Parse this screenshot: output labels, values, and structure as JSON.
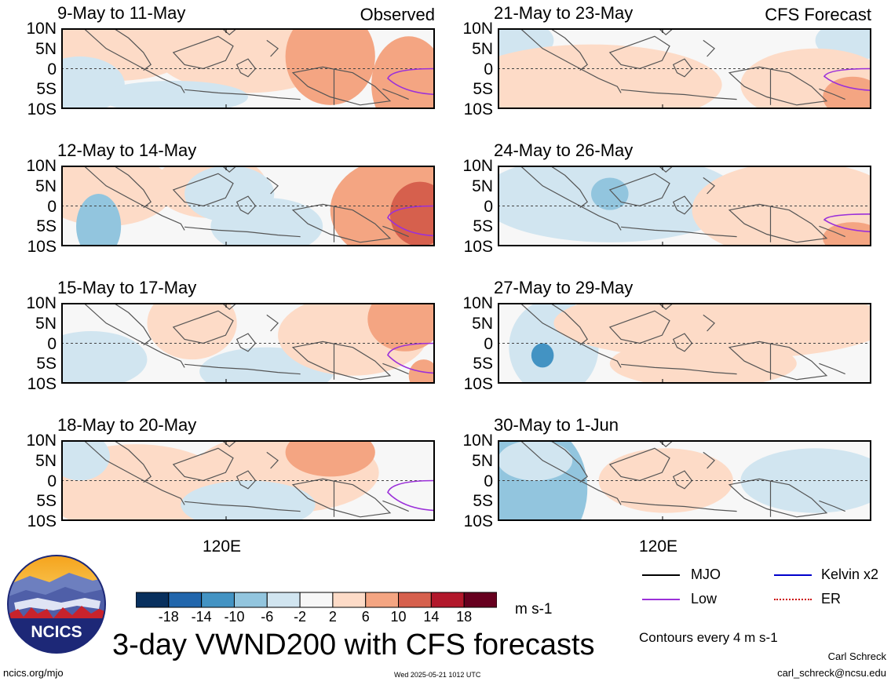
{
  "labels": {
    "observed": "Observed",
    "forecast": "CFS Forecast",
    "lat_ticks": [
      "10N",
      "5N",
      "0",
      "5S",
      "10S"
    ],
    "lon_tick": "120E"
  },
  "title": "3-day VWND200 with CFS forecasts",
  "units": "m s-1",
  "contour_note": "Contours every 4 m s-1",
  "footer": {
    "site": "ncics.org/mjo",
    "timestamp": "Wed 2025-05-21 1012 UTC",
    "author": "Carl Schreck",
    "email": "carl_schreck@ncsu.edu"
  },
  "logo": {
    "text": "NCICS"
  },
  "legend": [
    {
      "label": "MJO",
      "color": "#000000",
      "style": "solid"
    },
    {
      "label": "Kelvin x2",
      "color": "#0000cc",
      "style": "solid"
    },
    {
      "label": "Low",
      "color": "#9b30d9",
      "style": "solid"
    },
    {
      "label": "ER",
      "color": "#cc0000",
      "style": "dotted"
    }
  ],
  "colorbar": {
    "tick_labels": [
      "-18",
      "-14",
      "-10",
      "-6",
      "-2",
      "2",
      "6",
      "10",
      "14",
      "18"
    ],
    "colors": [
      "#08305e",
      "#2166ac",
      "#4393c3",
      "#92c5de",
      "#d1e5f0",
      "#f7f7f7",
      "#fddbc7",
      "#f4a582",
      "#d6604d",
      "#b2182b",
      "#67001f"
    ]
  },
  "chart_data": [
    {
      "type": "heatmap",
      "title": "9-May to 11-May",
      "tag": "Observed",
      "group": "observed",
      "ylim": [
        "10S",
        "10N"
      ],
      "xtick": "120E",
      "blobs": [
        {
          "x": 0.15,
          "y": 0.25,
          "rx": 0.2,
          "ry": 0.4,
          "v": 3
        },
        {
          "x": 0.5,
          "y": 0.3,
          "rx": 0.25,
          "ry": 0.5,
          "v": 3
        },
        {
          "x": 0.72,
          "y": 0.35,
          "rx": 0.12,
          "ry": 0.6,
          "v": 8
        },
        {
          "x": 0.93,
          "y": 0.7,
          "rx": 0.1,
          "ry": 0.6,
          "v": 9
        },
        {
          "x": 0.05,
          "y": 0.7,
          "rx": 0.12,
          "ry": 0.35,
          "v": -3
        },
        {
          "x": 0.3,
          "y": 0.85,
          "rx": 0.2,
          "ry": 0.2,
          "v": -3
        }
      ],
      "overlays": [
        {
          "kind": "Low",
          "shape": "arc-right",
          "y0": 0.5,
          "y1": 0.8
        }
      ]
    },
    {
      "type": "heatmap",
      "title": "12-May to 14-May",
      "tag": "",
      "group": "observed",
      "ylim": [
        "10S",
        "10N"
      ],
      "xtick": "120E",
      "blobs": [
        {
          "x": 0.12,
          "y": 0.3,
          "rx": 0.18,
          "ry": 0.45,
          "v": 3
        },
        {
          "x": 0.4,
          "y": 0.25,
          "rx": 0.15,
          "ry": 0.4,
          "v": 3
        },
        {
          "x": 0.1,
          "y": 0.75,
          "rx": 0.06,
          "ry": 0.4,
          "v": -6
        },
        {
          "x": 0.55,
          "y": 0.75,
          "rx": 0.15,
          "ry": 0.35,
          "v": -5
        },
        {
          "x": 0.45,
          "y": 0.35,
          "rx": 0.12,
          "ry": 0.35,
          "v": -3
        },
        {
          "x": 0.9,
          "y": 0.55,
          "rx": 0.18,
          "ry": 0.65,
          "v": 8
        },
        {
          "x": 0.96,
          "y": 0.6,
          "rx": 0.08,
          "ry": 0.4,
          "v": 12
        }
      ],
      "overlays": [
        {
          "kind": "Low",
          "shape": "arc-right",
          "y0": 0.5,
          "y1": 0.85
        }
      ]
    },
    {
      "type": "heatmap",
      "title": "15-May to 17-May",
      "tag": "",
      "group": "observed",
      "ylim": [
        "10S",
        "10N"
      ],
      "xtick": "120E",
      "blobs": [
        {
          "x": 0.08,
          "y": 0.7,
          "rx": 0.15,
          "ry": 0.35,
          "v": -3
        },
        {
          "x": 0.35,
          "y": 0.25,
          "rx": 0.12,
          "ry": 0.45,
          "v": 3
        },
        {
          "x": 0.55,
          "y": 0.85,
          "rx": 0.18,
          "ry": 0.3,
          "v": -5
        },
        {
          "x": 0.78,
          "y": 0.4,
          "rx": 0.2,
          "ry": 0.5,
          "v": 3
        },
        {
          "x": 0.92,
          "y": 0.2,
          "rx": 0.1,
          "ry": 0.4,
          "v": 8
        },
        {
          "x": 0.97,
          "y": 0.9,
          "rx": 0.04,
          "ry": 0.2,
          "v": 8
        }
      ],
      "overlays": [
        {
          "kind": "Low",
          "shape": "arc-right",
          "y0": 0.5,
          "y1": 0.85
        }
      ]
    },
    {
      "type": "heatmap",
      "title": "18-May to 20-May",
      "tag": "",
      "group": "observed",
      "ylim": [
        "10S",
        "10N"
      ],
      "xtick": "120E",
      "blobs": [
        {
          "x": 0.2,
          "y": 0.6,
          "rx": 0.25,
          "ry": 0.55,
          "v": 3
        },
        {
          "x": 0.6,
          "y": 0.4,
          "rx": 0.25,
          "ry": 0.5,
          "v": 3
        },
        {
          "x": 0.72,
          "y": 0.15,
          "rx": 0.12,
          "ry": 0.3,
          "v": 8
        },
        {
          "x": 0.5,
          "y": 0.8,
          "rx": 0.18,
          "ry": 0.3,
          "v": -5
        },
        {
          "x": 0.05,
          "y": 0.2,
          "rx": 0.08,
          "ry": 0.3,
          "v": -3
        }
      ],
      "overlays": [
        {
          "kind": "Low",
          "shape": "arc-right",
          "y0": 0.5,
          "y1": 0.85
        }
      ]
    },
    {
      "type": "heatmap",
      "title": "21-May to 23-May",
      "tag": "CFS Forecast",
      "group": "forecast",
      "ylim": [
        "10S",
        "10N"
      ],
      "xtick": "120E",
      "blobs": [
        {
          "x": 0.05,
          "y": 0.15,
          "rx": 0.1,
          "ry": 0.25,
          "v": -3
        },
        {
          "x": 0.95,
          "y": 0.15,
          "rx": 0.1,
          "ry": 0.25,
          "v": -4
        },
        {
          "x": 0.25,
          "y": 0.7,
          "rx": 0.35,
          "ry": 0.5,
          "v": 3
        },
        {
          "x": 0.85,
          "y": 0.7,
          "rx": 0.2,
          "ry": 0.45,
          "v": 3
        },
        {
          "x": 0.95,
          "y": 0.85,
          "rx": 0.08,
          "ry": 0.25,
          "v": 8
        }
      ],
      "overlays": [
        {
          "kind": "Low",
          "shape": "arc-right",
          "y0": 0.5,
          "y1": 0.75
        }
      ]
    },
    {
      "type": "heatmap",
      "title": "24-May to 26-May",
      "tag": "",
      "group": "forecast",
      "ylim": [
        "10S",
        "10N"
      ],
      "xtick": "120E",
      "blobs": [
        {
          "x": 0.3,
          "y": 0.4,
          "rx": 0.35,
          "ry": 0.55,
          "v": -3
        },
        {
          "x": 0.3,
          "y": 0.35,
          "rx": 0.05,
          "ry": 0.2,
          "v": -6
        },
        {
          "x": 0.8,
          "y": 0.55,
          "rx": 0.28,
          "ry": 0.6,
          "v": 3
        },
        {
          "x": 0.95,
          "y": 0.9,
          "rx": 0.08,
          "ry": 0.2,
          "v": 7
        }
      ],
      "overlays": [
        {
          "kind": "Low",
          "shape": "arc-right",
          "y0": 0.6,
          "y1": 0.8
        }
      ]
    },
    {
      "type": "heatmap",
      "title": "27-May to 29-May",
      "tag": "",
      "group": "forecast",
      "ylim": [
        "10S",
        "10N"
      ],
      "xtick": "120E",
      "blobs": [
        {
          "x": 0.15,
          "y": 0.55,
          "rx": 0.12,
          "ry": 0.6,
          "v": -5
        },
        {
          "x": 0.12,
          "y": 0.65,
          "rx": 0.03,
          "ry": 0.15,
          "v": -10
        },
        {
          "x": 0.6,
          "y": 0.25,
          "rx": 0.45,
          "ry": 0.45,
          "v": 3
        },
        {
          "x": 0.55,
          "y": 0.75,
          "rx": 0.25,
          "ry": 0.3,
          "v": 3
        }
      ],
      "overlays": []
    },
    {
      "type": "heatmap",
      "title": "30-May to 1-Jun",
      "tag": "",
      "group": "forecast",
      "ylim": [
        "10S",
        "10N"
      ],
      "xtick": "120E",
      "blobs": [
        {
          "x": 0.1,
          "y": 0.6,
          "rx": 0.14,
          "ry": 0.8,
          "v": -6
        },
        {
          "x": 0.1,
          "y": 0.25,
          "rx": 0.1,
          "ry": 0.25,
          "v": -3
        },
        {
          "x": 0.45,
          "y": 0.5,
          "rx": 0.18,
          "ry": 0.4,
          "v": 3
        },
        {
          "x": 0.85,
          "y": 0.5,
          "rx": 0.2,
          "ry": 0.4,
          "v": -2
        }
      ],
      "overlays": []
    }
  ]
}
